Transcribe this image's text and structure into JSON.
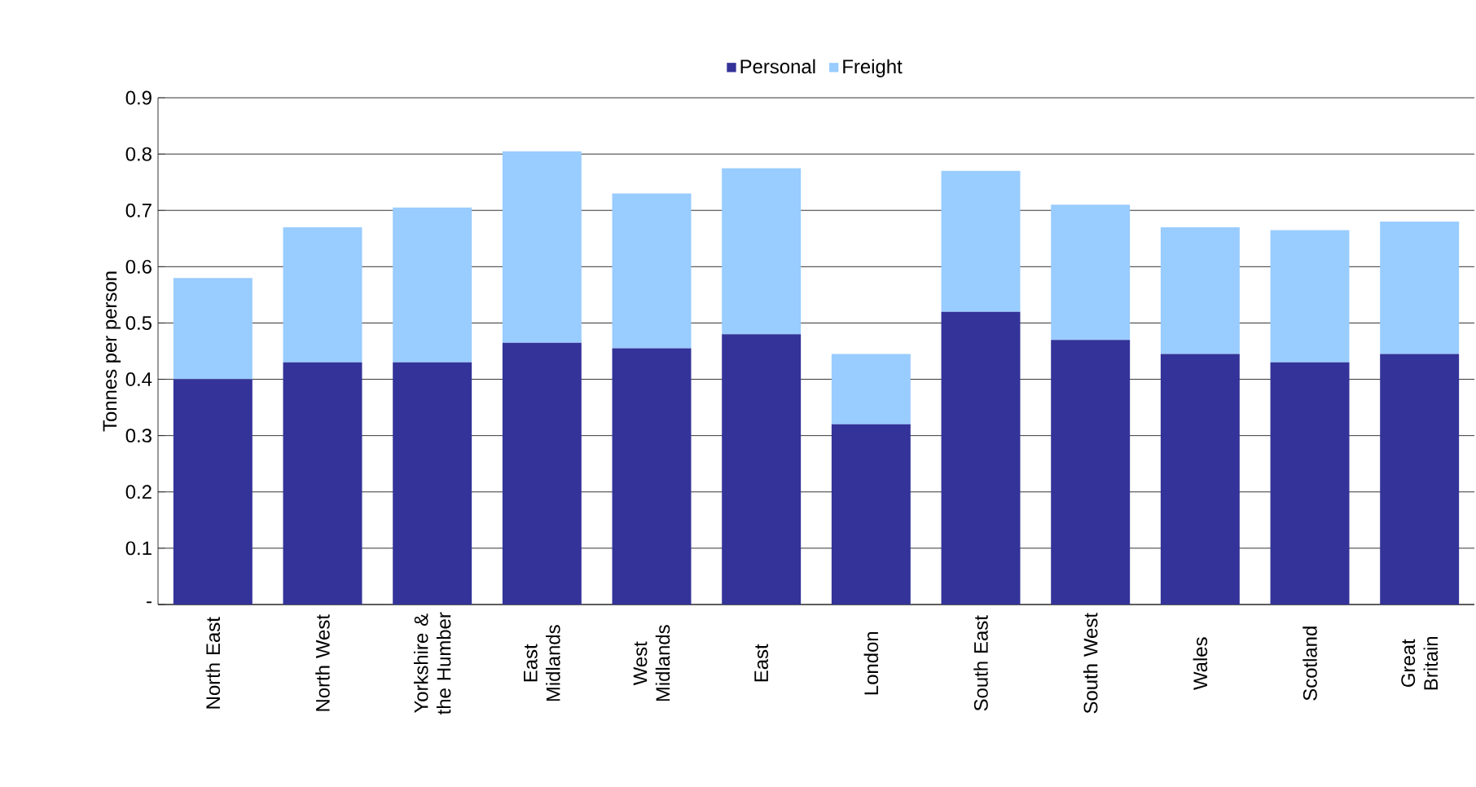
{
  "chart_data": {
    "type": "bar",
    "stacked": true,
    "ylabel": "Tonnes per person",
    "categories": [
      "North East",
      "North West",
      "Yorkshire & the Humber",
      "East Midlands",
      "West Midlands",
      "East",
      "London",
      "South East",
      "South West",
      "Wales",
      "Scotland",
      "Great Britain"
    ],
    "series": [
      {
        "name": "Personal",
        "color": "#333399",
        "values": [
          0.4,
          0.43,
          0.43,
          0.465,
          0.455,
          0.48,
          0.32,
          0.52,
          0.47,
          0.445,
          0.43,
          0.445
        ]
      },
      {
        "name": "Freight",
        "color": "#99ccff",
        "values": [
          0.18,
          0.24,
          0.275,
          0.34,
          0.275,
          0.295,
          0.125,
          0.25,
          0.24,
          0.225,
          0.235,
          0.235
        ]
      }
    ],
    "ylim": [
      0,
      0.9
    ],
    "yticks": [
      {
        "value": 0,
        "label": "-"
      },
      0.1,
      0.2,
      0.3,
      0.4,
      0.5,
      0.6,
      0.7,
      0.8,
      0.9
    ],
    "grid": "y",
    "legend": "top"
  }
}
